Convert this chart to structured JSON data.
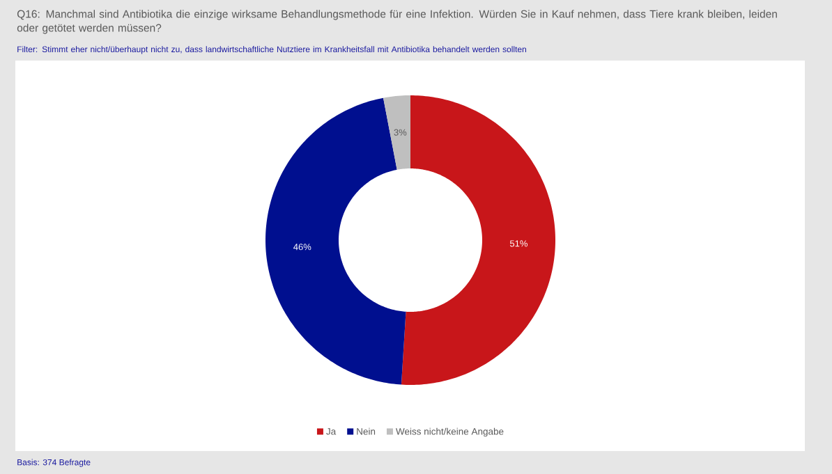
{
  "chart_data": {
    "type": "donut",
    "title": "Q16: Manchmal sind Antibiotika die einzige wirksame Behandlungsmethode für eine Infektion. Würden Sie in Kauf nehmen, dass Tiere krank bleiben, leiden oder getötet werden müssen?",
    "subtitle": "Filter: Stimmt eher nicht/überhaupt nicht zu, dass landwirtschaftliche Nutztiere im Krankheitsfall mit Antibiotika behandelt werden sollten",
    "categories": [
      "Ja",
      "Nein",
      "Weiss nicht/keine Angabe"
    ],
    "values": [
      51,
      46,
      3
    ],
    "colors": [
      "#c8161a",
      "#000f8f",
      "#bfbfbf"
    ],
    "value_labels": [
      "51%",
      "46%",
      "3%"
    ],
    "legend": "bottom",
    "annotations": [
      "Basis: 374 Befragte"
    ]
  }
}
